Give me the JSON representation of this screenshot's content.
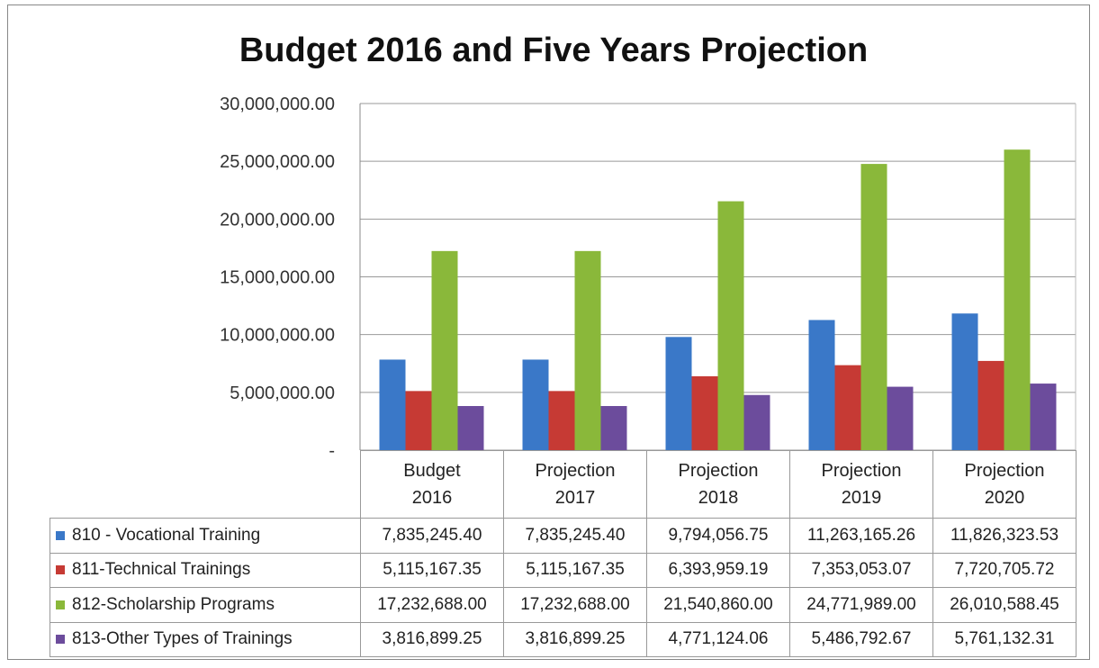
{
  "chart_data": {
    "type": "bar",
    "title": "Budget 2016 and Five Years Projection",
    "categories": [
      "Budget 2016",
      "Projection 2017",
      "Projection 2018",
      "Projection 2019",
      "Projection 2020"
    ],
    "series": [
      {
        "name": "810 - Vocational Training",
        "color": "#3a78c8",
        "values": [
          7835245.4,
          7835245.4,
          9794056.75,
          11263165.26,
          11826323.53
        ],
        "value_labels": [
          "7,835,245.40",
          "7,835,245.40",
          "9,794,056.75",
          "11,263,165.26",
          "11,826,323.53"
        ]
      },
      {
        "name": "811-Technical Trainings",
        "color": "#c63a34",
        "values": [
          5115167.35,
          5115167.35,
          6393959.19,
          7353053.07,
          7720705.72
        ],
        "value_labels": [
          "5,115,167.35",
          "5,115,167.35",
          "6,393,959.19",
          "7,353,053.07",
          "7,720,705.72"
        ]
      },
      {
        "name": "812-Scholarship Programs",
        "color": "#8ab83a",
        "values": [
          17232688.0,
          17232688.0,
          21540860.0,
          24771989.0,
          26010588.45
        ],
        "value_labels": [
          "17,232,688.00",
          "17,232,688.00",
          "21,540,860.00",
          "24,771,989.00",
          "26,010,588.45"
        ]
      },
      {
        "name": "813-Other Types of Trainings",
        "color": "#6c4c9c",
        "values": [
          3816899.25,
          3816899.25,
          4771124.06,
          5486792.67,
          5761132.31
        ],
        "value_labels": [
          "3,816,899.25",
          "3,816,899.25",
          "4,771,124.06",
          "5,486,792.67",
          "5,761,132.31"
        ]
      }
    ],
    "ylim": [
      0,
      30000000
    ],
    "yticks": [
      {
        "value": 0,
        "label": "-"
      },
      {
        "value": 5000000,
        "label": "5,000,000.00"
      },
      {
        "value": 10000000,
        "label": "10,000,000.00"
      },
      {
        "value": 15000000,
        "label": "15,000,000.00"
      },
      {
        "value": 20000000,
        "label": "20,000,000.00"
      },
      {
        "value": 25000000,
        "label": "25,000,000.00"
      },
      {
        "value": 30000000,
        "label": "30,000,000.00"
      }
    ],
    "grid": true
  }
}
